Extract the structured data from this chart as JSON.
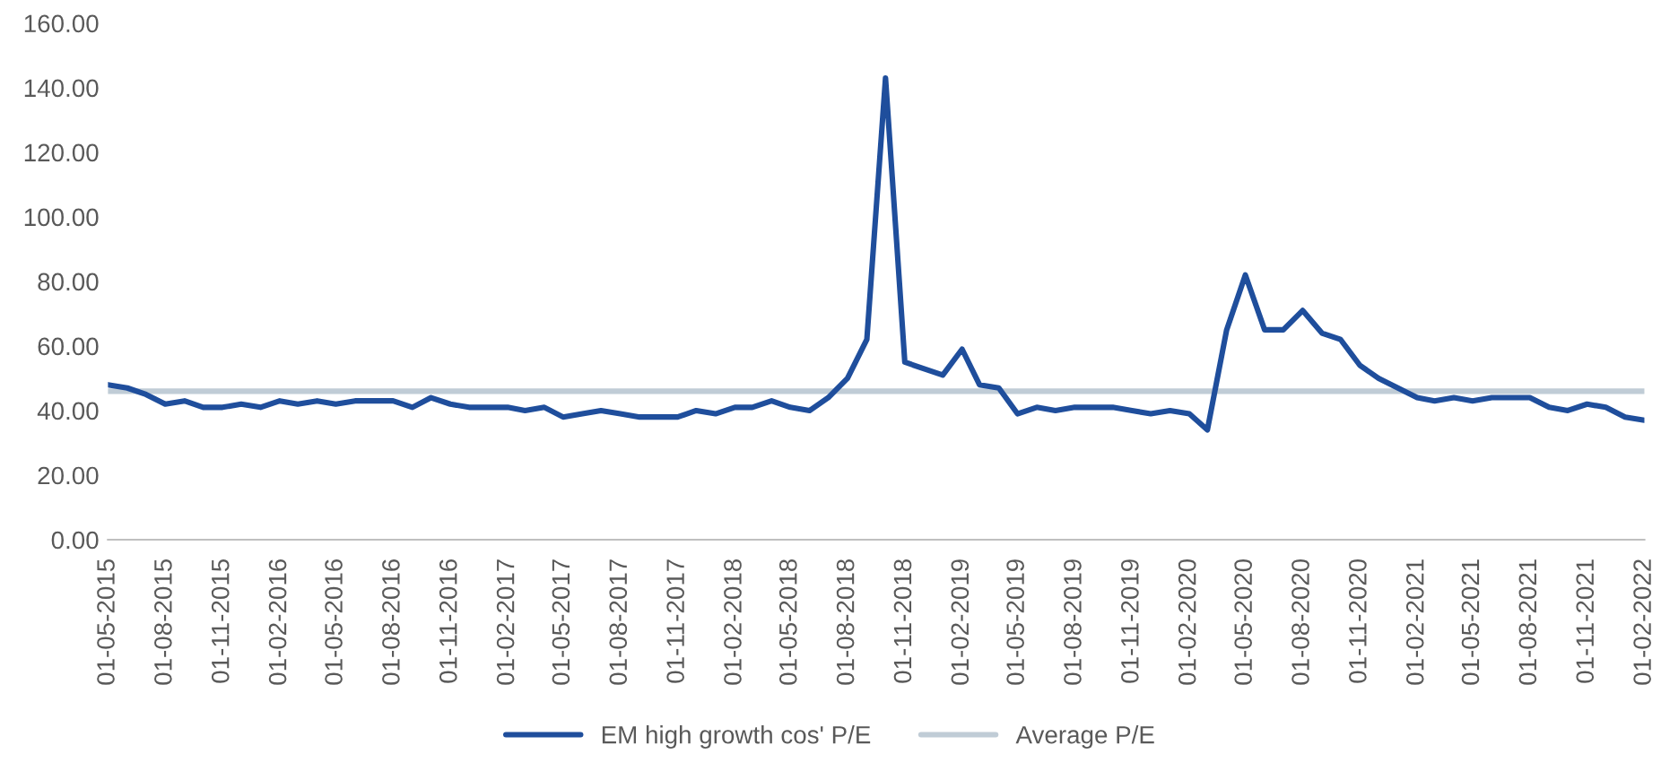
{
  "chart_data": {
    "type": "line",
    "x": [
      "2015-05",
      "2015-06",
      "2015-07",
      "2015-08",
      "2015-09",
      "2015-10",
      "2015-11",
      "2015-12",
      "2016-01",
      "2016-02",
      "2016-03",
      "2016-04",
      "2016-05",
      "2016-06",
      "2016-07",
      "2016-08",
      "2016-09",
      "2016-10",
      "2016-11",
      "2016-12",
      "2017-01",
      "2017-02",
      "2017-03",
      "2017-04",
      "2017-05",
      "2017-06",
      "2017-07",
      "2017-08",
      "2017-09",
      "2017-10",
      "2017-11",
      "2017-12",
      "2018-01",
      "2018-02",
      "2018-03",
      "2018-04",
      "2018-05",
      "2018-06",
      "2018-07",
      "2018-08",
      "2018-09",
      "2018-10",
      "2018-11",
      "2018-12",
      "2019-01",
      "2019-02",
      "2019-03",
      "2019-04",
      "2019-05",
      "2019-06",
      "2019-07",
      "2019-08",
      "2019-09",
      "2019-10",
      "2019-11",
      "2019-12",
      "2020-01",
      "2020-02",
      "2020-03",
      "2020-04",
      "2020-05",
      "2020-06",
      "2020-07",
      "2020-08",
      "2020-09",
      "2020-10",
      "2020-11",
      "2020-12",
      "2021-01",
      "2021-02",
      "2021-03",
      "2021-04",
      "2021-05",
      "2021-06",
      "2021-07",
      "2021-08",
      "2021-09",
      "2021-10",
      "2021-11",
      "2021-12",
      "2022-01",
      "2022-02"
    ],
    "series": [
      {
        "name": "EM high growth cos' P/E",
        "color": "#1f4e9c",
        "values": [
          48,
          47,
          45,
          42,
          43,
          41,
          41,
          42,
          41,
          43,
          42,
          43,
          42,
          43,
          43,
          43,
          41,
          44,
          42,
          41,
          41,
          41,
          40,
          41,
          38,
          39,
          40,
          39,
          38,
          38,
          38,
          40,
          39,
          41,
          41,
          43,
          41,
          40,
          44,
          50,
          62,
          143,
          55,
          53,
          51,
          59,
          48,
          47,
          39,
          41,
          40,
          41,
          41,
          41,
          40,
          39,
          40,
          39,
          34,
          65,
          82,
          65,
          65,
          71,
          64,
          62,
          54,
          50,
          47,
          44,
          43,
          44,
          43,
          44,
          44,
          44,
          41,
          40,
          42,
          41,
          38,
          37
        ]
      }
    ],
    "ref_lines": [
      {
        "axis": "y",
        "value": 46,
        "label": "Average P/E",
        "color": "#c0ccd6"
      }
    ],
    "ylim": [
      0,
      160
    ],
    "yticks": [
      {
        "value": 0,
        "label": "0.00"
      },
      {
        "value": 20,
        "label": "20.00"
      },
      {
        "value": 40,
        "label": "40.00"
      },
      {
        "value": 60,
        "label": "60.00"
      },
      {
        "value": 80,
        "label": "80.00"
      },
      {
        "value": 100,
        "label": "100.00"
      },
      {
        "value": 120,
        "label": "120.00"
      },
      {
        "value": 140,
        "label": "140.00"
      },
      {
        "value": 160,
        "label": "160.00"
      }
    ],
    "xlim": [
      "2015-05",
      "2022-02"
    ],
    "xticks": [
      {
        "value": "2015-05",
        "label": "01-05-2015"
      },
      {
        "value": "2015-08",
        "label": "01-08-2015"
      },
      {
        "value": "2015-11",
        "label": "01-11-2015"
      },
      {
        "value": "2016-02",
        "label": "01-02-2016"
      },
      {
        "value": "2016-05",
        "label": "01-05-2016"
      },
      {
        "value": "2016-08",
        "label": "01-08-2016"
      },
      {
        "value": "2016-11",
        "label": "01-11-2016"
      },
      {
        "value": "2017-02",
        "label": "01-02-2017"
      },
      {
        "value": "2017-05",
        "label": "01-05-2017"
      },
      {
        "value": "2017-08",
        "label": "01-08-2017"
      },
      {
        "value": "2017-11",
        "label": "01-11-2017"
      },
      {
        "value": "2018-02",
        "label": "01-02-2018"
      },
      {
        "value": "2018-05",
        "label": "01-05-2018"
      },
      {
        "value": "2018-08",
        "label": "01-08-2018"
      },
      {
        "value": "2018-11",
        "label": "01-11-2018"
      },
      {
        "value": "2019-02",
        "label": "01-02-2019"
      },
      {
        "value": "2019-05",
        "label": "01-05-2019"
      },
      {
        "value": "2019-08",
        "label": "01-08-2019"
      },
      {
        "value": "2019-11",
        "label": "01-11-2019"
      },
      {
        "value": "2020-02",
        "label": "01-02-2020"
      },
      {
        "value": "2020-05",
        "label": "01-05-2020"
      },
      {
        "value": "2020-08",
        "label": "01-08-2020"
      },
      {
        "value": "2020-11",
        "label": "01-11-2020"
      },
      {
        "value": "2021-02",
        "label": "01-02-2021"
      },
      {
        "value": "2021-05",
        "label": "01-05-2021"
      },
      {
        "value": "2021-08",
        "label": "01-08-2021"
      },
      {
        "value": "2021-11",
        "label": "01-11-2021"
      },
      {
        "value": "2022-02",
        "label": "01-02-2022"
      }
    ],
    "grid": false,
    "legend": "bottom",
    "marker": "none",
    "line_style": "solid"
  }
}
